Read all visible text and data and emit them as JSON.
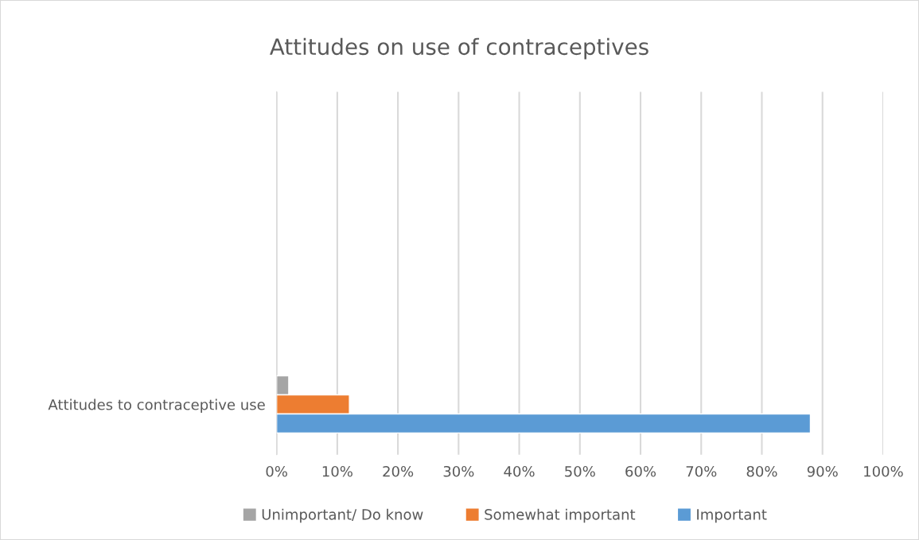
{
  "chart_data": {
    "type": "bar",
    "orientation": "horizontal",
    "title": "Attitudes on use of contraceptives",
    "categories": [
      "Attitudes to contraceptive use"
    ],
    "series": [
      {
        "name": "Unimportant/ Do know",
        "color": "#a5a5a5",
        "values": [
          2
        ]
      },
      {
        "name": "Somewhat important",
        "color": "#ed7d31",
        "values": [
          12
        ]
      },
      {
        "name": "Important",
        "color": "#5b9bd5",
        "values": [
          88
        ]
      }
    ],
    "xlim": [
      0,
      100
    ],
    "xticks": [
      {
        "value": 0,
        "label": "0%"
      },
      {
        "value": 10,
        "label": "10%"
      },
      {
        "value": 20,
        "label": "20%"
      },
      {
        "value": 30,
        "label": "30%"
      },
      {
        "value": 40,
        "label": "40%"
      },
      {
        "value": 50,
        "label": "50%"
      },
      {
        "value": 60,
        "label": "60%"
      },
      {
        "value": 70,
        "label": "70%"
      },
      {
        "value": 80,
        "label": "80%"
      },
      {
        "value": 90,
        "label": "90%"
      },
      {
        "value": 100,
        "label": "100%"
      }
    ],
    "grid": "x",
    "legend": "bottom"
  }
}
